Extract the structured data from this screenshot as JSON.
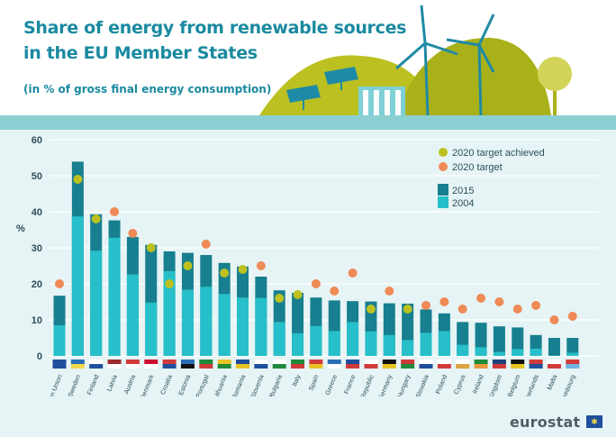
{
  "header": {
    "title_line1": "Share of energy from renewable sources",
    "title_line2": "in the EU Member States",
    "subtitle": "(in % of gross final energy consumption)"
  },
  "brand": "eurostat",
  "colors": {
    "bar_2015": "#177f8f",
    "bar_2004": "#27bfc9",
    "target_achieved": "#bcc121",
    "target": "#f08a56",
    "background": "#e6f4f5",
    "title": "#1a8aa0"
  },
  "chart_data": {
    "type": "bar",
    "ylabel": "%",
    "ylim": [
      0,
      60
    ],
    "yticks": [
      0,
      10,
      20,
      30,
      40,
      50,
      60
    ],
    "grid": true,
    "legend_position": "top-right",
    "legend": {
      "target_achieved": "2020 target achieved",
      "target": "2020 target",
      "series_2015": "2015",
      "series_2004": "2004"
    },
    "categories": [
      "European Union",
      "Sweden",
      "Finland",
      "Latvia",
      "Austria",
      "Denmark",
      "Croatia",
      "Estonia",
      "Portugal",
      "Lithuania",
      "Romania",
      "Slovenia",
      "Bulgaria",
      "Italy",
      "Spain",
      "Greece",
      "France",
      "Czech Republic",
      "Germany",
      "Hungary",
      "Slovakia",
      "Poland",
      "Cyprus",
      "Ireland",
      "United Kingdom",
      "Belgium",
      "Netherlands",
      "Malta",
      "Luxembourg"
    ],
    "series": [
      {
        "name": "2015",
        "values": [
          16.7,
          53.9,
          39.3,
          37.6,
          33.0,
          30.8,
          29.0,
          28.6,
          28.0,
          25.8,
          24.8,
          22.0,
          18.2,
          17.5,
          16.2,
          15.4,
          15.2,
          15.1,
          14.6,
          14.5,
          12.9,
          11.8,
          9.4,
          9.2,
          8.2,
          7.9,
          5.8,
          5.0,
          5.0
        ]
      },
      {
        "name": "2004",
        "values": [
          8.5,
          38.7,
          29.2,
          32.8,
          22.6,
          14.8,
          23.5,
          18.4,
          19.2,
          17.2,
          16.2,
          16.1,
          9.4,
          6.3,
          8.3,
          6.9,
          9.4,
          6.8,
          5.8,
          4.4,
          6.4,
          6.9,
          3.1,
          2.4,
          1.1,
          1.9,
          2.0,
          0.1,
          0.9
        ]
      }
    ],
    "targets": [
      20,
      49,
      38,
      40,
      34,
      30,
      20,
      25,
      31,
      23,
      24,
      25,
      16,
      17,
      20,
      18,
      23,
      13,
      18,
      13,
      14,
      15,
      13,
      16,
      15,
      13,
      14,
      10,
      11
    ],
    "target_achieved": [
      false,
      true,
      true,
      false,
      false,
      true,
      true,
      true,
      false,
      true,
      true,
      false,
      true,
      true,
      false,
      false,
      false,
      true,
      false,
      true,
      false,
      false,
      false,
      false,
      false,
      false,
      false,
      false,
      false
    ]
  }
}
